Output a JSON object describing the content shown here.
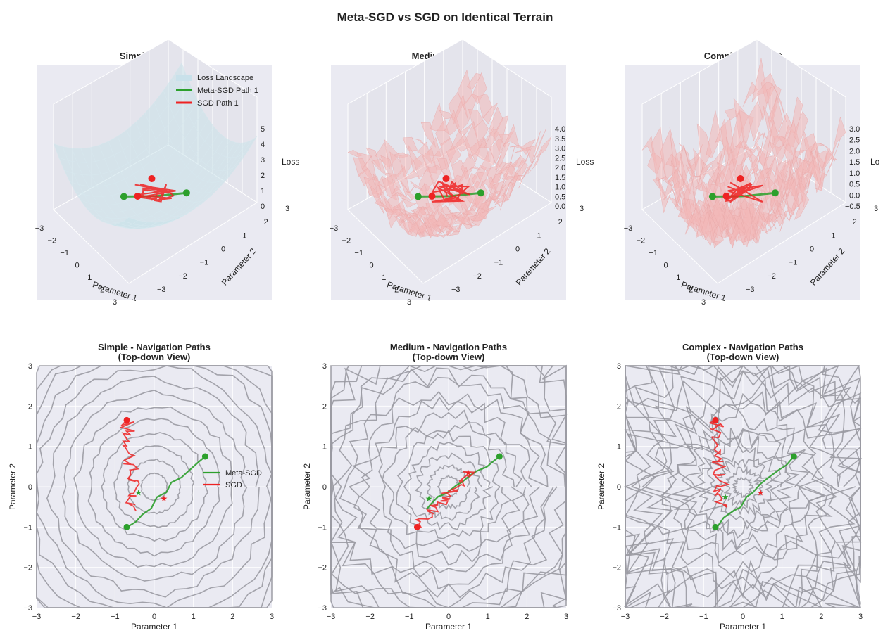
{
  "figure": {
    "suptitle": "Meta-SGD vs SGD on Identical Terrain"
  },
  "colors": {
    "panel_bg": "#eaeaf2",
    "grid": "#ffffff",
    "meta": "#2ca02c",
    "sgd": "#ee2222",
    "contour": "#9a9aa2",
    "surface_simple": "#c9e1ea",
    "surface_rough": "#f2b8b8"
  },
  "chart_data": [
    {
      "type": "surface3d",
      "title": "Simple Concept",
      "xlabel": "Parameter 1",
      "ylabel": "Parameter 2",
      "zlabel": "Loss",
      "xticks": [
        "−3",
        "−2",
        "−1",
        "0",
        "1",
        "2",
        "3"
      ],
      "yticks": [
        "−3",
        "−2",
        "−1",
        "0",
        "1",
        "2",
        "3"
      ],
      "zticks": [
        "0",
        "1",
        "2",
        "3",
        "4",
        "5"
      ],
      "zlim": [
        0,
        5
      ],
      "legend": [
        "Loss Landscape",
        "Meta-SGD Path 1",
        "SGD Path 1"
      ],
      "legend_placement": "top-right"
    },
    {
      "type": "surface3d",
      "title": "Medium Concept",
      "xlabel": "Parameter 1",
      "ylabel": "Parameter 2",
      "zlabel": "Loss",
      "xticks": [
        "−3",
        "−2",
        "−1",
        "0",
        "1",
        "2",
        "3"
      ],
      "yticks": [
        "−3",
        "−2",
        "−1",
        "0",
        "1",
        "2",
        "3"
      ],
      "zticks": [
        "0.0",
        "0.5",
        "1.0",
        "1.5",
        "2.0",
        "2.5",
        "3.0",
        "3.5",
        "4.0"
      ],
      "zlim": [
        0,
        4
      ]
    },
    {
      "type": "surface3d",
      "title": "Complex Concept",
      "xlabel": "Parameter 1",
      "ylabel": "Parameter 2",
      "zlabel": "Lo",
      "xticks": [
        "−3",
        "−2",
        "−1",
        "0",
        "1",
        "2",
        "3"
      ],
      "yticks": [
        "−3",
        "−2",
        "−1",
        "0",
        "1",
        "2",
        "3"
      ],
      "zticks": [
        "−0.5",
        "0.0",
        "0.5",
        "1.0",
        "1.5",
        "2.0",
        "2.5",
        "3.0"
      ],
      "zlim": [
        -0.5,
        3
      ]
    },
    {
      "type": "line",
      "title": "Simple - Navigation Paths\n(Top-down View)",
      "xlabel": "Parameter 1",
      "ylabel": "Parameter 2",
      "xlim": [
        -3,
        3
      ],
      "ylim": [
        -3,
        3
      ],
      "xticks": [
        "−3",
        "−2",
        "−1",
        "0",
        "1",
        "2",
        "3"
      ],
      "yticks": [
        "−3",
        "−2",
        "−1",
        "0",
        "1",
        "2",
        "3"
      ],
      "legend": [
        "Meta-SGD",
        "SGD"
      ],
      "legend_placement": "center-right",
      "series": [
        {
          "name": "Meta-SGD",
          "start": [
            1.3,
            0.75
          ],
          "end": [
            -0.7,
            -1.0
          ],
          "final": [
            -0.4,
            -0.15
          ]
        },
        {
          "name": "SGD",
          "start": [
            -0.7,
            1.65
          ],
          "end": [
            -0.5,
            -0.6
          ],
          "final": [
            0.25,
            -0.3
          ]
        }
      ]
    },
    {
      "type": "line",
      "title": "Medium - Navigation Paths\n(Top-down View)",
      "xlabel": "Parameter 1",
      "ylabel": "Parameter 2",
      "xlim": [
        -3,
        3
      ],
      "ylim": [
        -3,
        3
      ],
      "xticks": [
        "−3",
        "−2",
        "−1",
        "0",
        "1",
        "2",
        "3"
      ],
      "yticks": [
        "−3",
        "−2",
        "−1",
        "0",
        "1",
        "2",
        "3"
      ],
      "series": [
        {
          "name": "Meta-SGD",
          "start": [
            1.3,
            0.75
          ],
          "final": [
            -0.5,
            -0.3
          ]
        },
        {
          "name": "SGD",
          "start": [
            -0.8,
            -1.0
          ],
          "final": [
            0.5,
            0.35
          ]
        }
      ]
    },
    {
      "type": "line",
      "title": "Complex - Navigation Paths\n(Top-down View)",
      "xlabel": "Parameter 1",
      "ylabel": "Parameter 2",
      "xlim": [
        -3,
        3
      ],
      "ylim": [
        -3,
        3
      ],
      "xticks": [
        "−3",
        "−2",
        "−1",
        "0",
        "1",
        "2",
        "3"
      ],
      "yticks": [
        "−3",
        "−2",
        "−1",
        "0",
        "1",
        "2",
        "3"
      ],
      "series": [
        {
          "name": "Meta-SGD",
          "start": [
            1.3,
            0.75
          ],
          "end": [
            -0.7,
            -1.0
          ],
          "final": [
            -0.45,
            -0.25
          ]
        },
        {
          "name": "SGD",
          "start": [
            -0.7,
            1.65
          ],
          "end": [
            -0.5,
            -0.55
          ],
          "final": [
            0.45,
            -0.15
          ]
        }
      ]
    }
  ]
}
